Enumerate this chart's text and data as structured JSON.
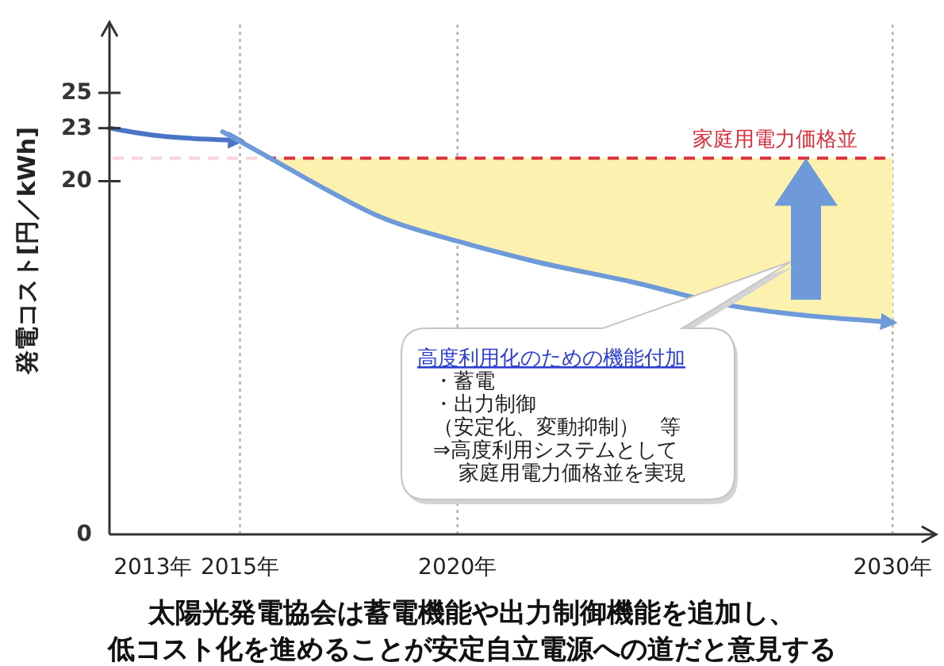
{
  "chart_data": {
    "type": "line",
    "title": "太陽光発電協会は蓄電機能や出力制御機能を追加し、低コスト化を進めることが安定自立電源への道だと意見する",
    "ylabel": "発電コスト[円／kWh]",
    "xlim": [
      2012,
      2031
    ],
    "xticks": [
      {
        "value": 2013,
        "label": "2013年"
      },
      {
        "value": 2015,
        "label": "2015年"
      },
      {
        "value": 2020,
        "label": "2020年"
      },
      {
        "value": 2030,
        "label": "2030年"
      }
    ],
    "ylim": [
      0,
      29
    ],
    "yticks": [
      0,
      20,
      23,
      25
    ],
    "series": [
      {
        "color": "#4a74c4",
        "x": [
          2012,
          2013,
          2014,
          2015
        ],
        "values": [
          23,
          22.6,
          22.4,
          22.3
        ]
      },
      {
        "color": "#6e9ad9",
        "x": [
          2014.6,
          2015.7,
          2017,
          2018.2,
          2020,
          2021.7,
          2024,
          2026.4,
          2027.6,
          2030
        ],
        "values": [
          22.8,
          21.3,
          19.5,
          18.0,
          16.6,
          15.5,
          14.3,
          12.9,
          12.5,
          12.0
        ],
        "lower": [
          null,
          21.3,
          19.5,
          18.0,
          16.6,
          15.5,
          14.3,
          12.9,
          12.5,
          12.0
        ],
        "upper": [
          null,
          21.3,
          21.3,
          21.3,
          21.3,
          21.3,
          21.3,
          21.3,
          21.3,
          21.3
        ]
      }
    ],
    "ref_lines": [
      {
        "axis": "x",
        "value": 2015,
        "color": "#b4b4b4",
        "line_style": "dotted"
      },
      {
        "axis": "x",
        "value": 2020,
        "color": "#b4b4b4",
        "line_style": "dotted"
      },
      {
        "axis": "x",
        "value": 2030,
        "color": "#b4b4b4",
        "line_style": "dotted"
      },
      {
        "axis": "y",
        "value": 21.3,
        "label": "家庭用電力価格並",
        "color": "#d9303c",
        "line_style": "dashed"
      }
    ],
    "annotations": [
      "高度利用化のための機能付加",
      "・蓄電",
      "・出力制御",
      "（安定化、変動抑制）　等",
      "⇒高度利用システムとして",
      "家庭用電力価格並を実現"
    ]
  }
}
